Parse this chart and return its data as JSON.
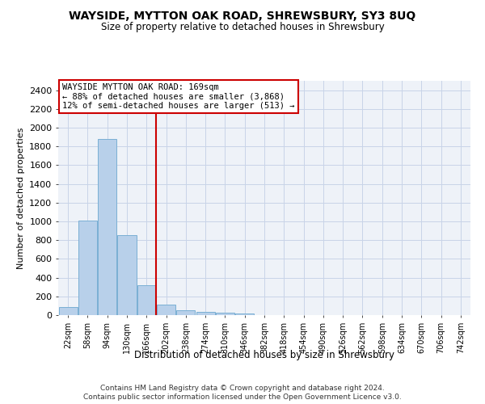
{
  "title": "WAYSIDE, MYTTON OAK ROAD, SHREWSBURY, SY3 8UQ",
  "subtitle": "Size of property relative to detached houses in Shrewsbury",
  "xlabel": "Distribution of detached houses by size in Shrewsbury",
  "ylabel": "Number of detached properties",
  "bar_color": "#b8d0ea",
  "bar_edge_color": "#7aafd4",
  "vline_color": "#cc0000",
  "annotation_line1": "WAYSIDE MYTTON OAK ROAD: 169sqm",
  "annotation_line2": "← 88% of detached houses are smaller (3,868)",
  "annotation_line3": "12% of semi-detached houses are larger (513) →",
  "annotation_box_color": "#ffffff",
  "annotation_box_edge": "#cc0000",
  "categories": [
    "22sqm",
    "58sqm",
    "94sqm",
    "130sqm",
    "166sqm",
    "202sqm",
    "238sqm",
    "274sqm",
    "310sqm",
    "346sqm",
    "382sqm",
    "418sqm",
    "454sqm",
    "490sqm",
    "526sqm",
    "562sqm",
    "598sqm",
    "634sqm",
    "670sqm",
    "706sqm",
    "742sqm"
  ],
  "values": [
    85,
    1010,
    1880,
    855,
    315,
    115,
    48,
    38,
    28,
    18,
    0,
    0,
    0,
    0,
    0,
    0,
    0,
    0,
    0,
    0,
    0
  ],
  "ylim": [
    0,
    2500
  ],
  "yticks": [
    0,
    200,
    400,
    600,
    800,
    1000,
    1200,
    1400,
    1600,
    1800,
    2000,
    2200,
    2400
  ],
  "grid_color": "#c8d4e8",
  "background_color": "#eef2f8",
  "footer1": "Contains HM Land Registry data © Crown copyright and database right 2024.",
  "footer2": "Contains public sector information licensed under the Open Government Licence v3.0."
}
